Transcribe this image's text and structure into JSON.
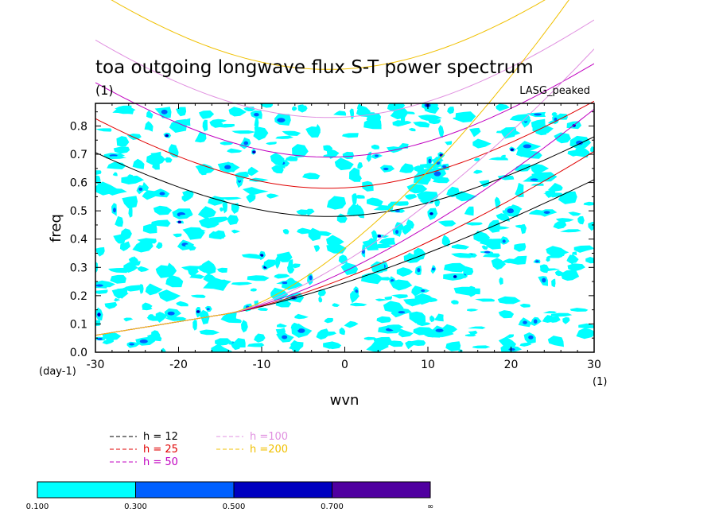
{
  "chart_data": {
    "type": "contour",
    "title": "toa outgoing longwave flux S-T power spectrum",
    "subtitle_left": "(1)",
    "subtitle_right": "LASG_peaked",
    "xlabel": "wvn",
    "ylabel": "freq",
    "x_units": "(1)",
    "y_units": "(day-1)",
    "xlim": [
      -30,
      30
    ],
    "ylim": [
      0.0,
      0.88
    ],
    "x_ticks": [
      -30,
      -20,
      -10,
      0,
      10,
      20,
      30
    ],
    "x_tick_labels": [
      "-30",
      "-20",
      "-10",
      "0",
      "10",
      "20",
      "30"
    ],
    "y_ticks": [
      0.0,
      0.1,
      0.2,
      0.3,
      0.4,
      0.5,
      0.6,
      0.7,
      0.8
    ],
    "y_tick_labels": [
      "0.0",
      "0.1",
      "0.2",
      "0.3",
      "0.4",
      "0.5",
      "0.6",
      "0.7",
      "0.8"
    ],
    "dispersion_curves": [
      {
        "name": "h = 12",
        "color": "#000000",
        "n0_vertex": [
          -2,
          0.48
        ],
        "lower_left": 0.06
      },
      {
        "name": "h = 25",
        "color": "#e00000",
        "n0_vertex": [
          -2,
          0.58
        ],
        "lower_left": 0.06
      },
      {
        "name": "h = 50",
        "color": "#c000c0",
        "n0_vertex": [
          -2,
          0.69
        ],
        "lower_left": 0.06
      },
      {
        "name": "h =100",
        "color": "#e090e0",
        "n0_vertex": [
          -2,
          0.83
        ],
        "lower_left": 0.06
      },
      {
        "name": "h =200",
        "color": "#f0c000",
        "n0_vertex": [
          -2,
          1.0
        ],
        "lower_left": 0.06
      }
    ],
    "colorbar": {
      "levels": [
        "0.100",
        "0.300",
        "0.500",
        "0.700",
        "∞"
      ],
      "colors": [
        "#00ffff",
        "#0060ff",
        "#0000c0",
        "#5000a0"
      ]
    }
  }
}
